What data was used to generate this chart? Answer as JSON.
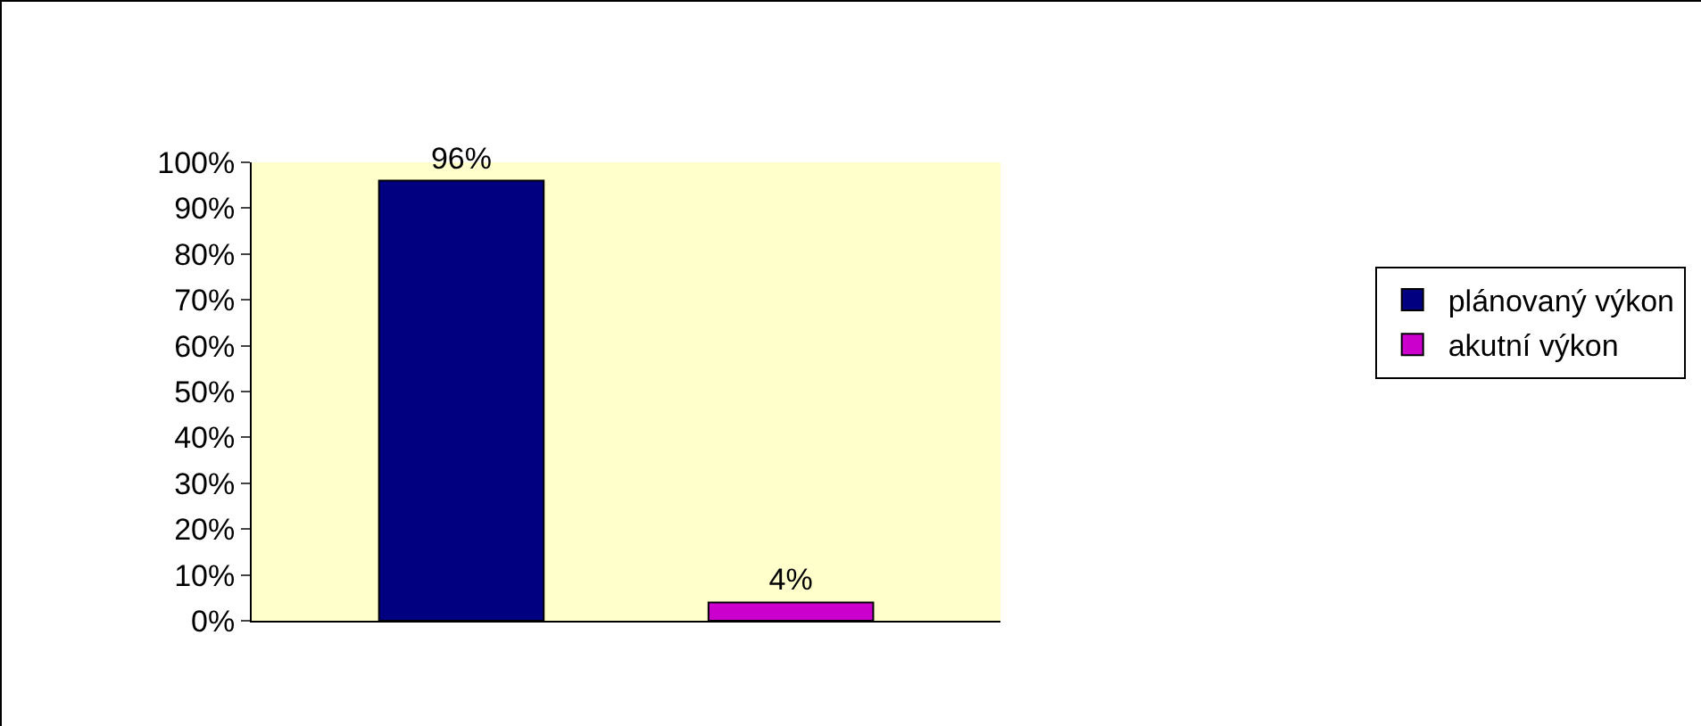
{
  "chart_data": {
    "type": "bar",
    "categories": [
      null
    ],
    "series": [
      {
        "name": "plánovaný výkon",
        "color": "#000080",
        "values": [
          96
        ],
        "value_labels": [
          "96%"
        ]
      },
      {
        "name": "akutní výkon",
        "color": "#cc00cc",
        "values": [
          4
        ],
        "value_labels": [
          "4%"
        ]
      }
    ],
    "ylim": [
      0,
      100
    ],
    "yticks": [
      {
        "value": 0,
        "label": "0%"
      },
      {
        "value": 10,
        "label": "10%"
      },
      {
        "value": 20,
        "label": "20%"
      },
      {
        "value": 30,
        "label": "30%"
      },
      {
        "value": 40,
        "label": "40%"
      },
      {
        "value": 50,
        "label": "50%"
      },
      {
        "value": 60,
        "label": "60%"
      },
      {
        "value": 70,
        "label": "70%"
      },
      {
        "value": 80,
        "label": "80%"
      },
      {
        "value": 90,
        "label": "90%"
      },
      {
        "value": 100,
        "label": "100%"
      }
    ],
    "grid": false,
    "legend": "right",
    "tick_labels": "y"
  }
}
